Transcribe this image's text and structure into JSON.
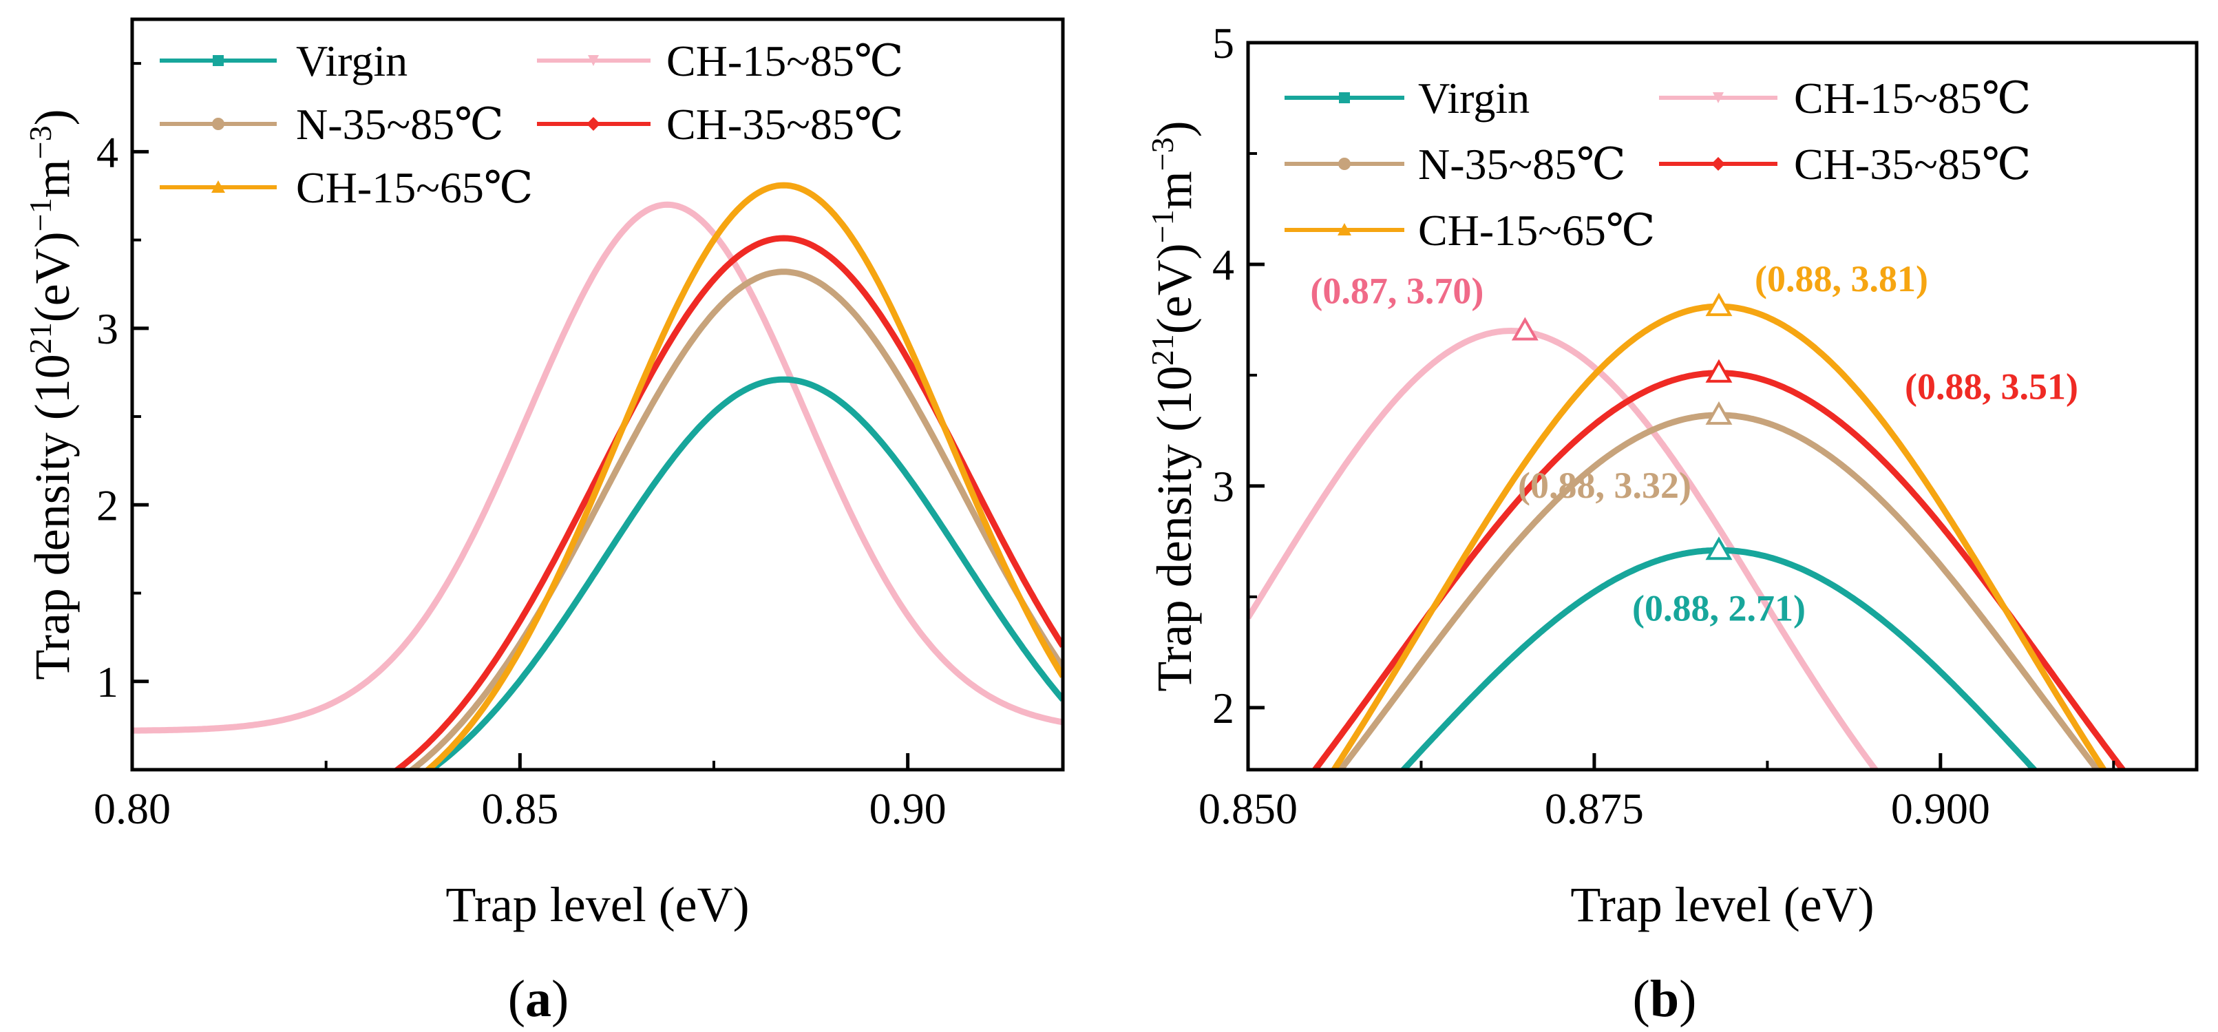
{
  "chart_data": [
    {
      "type": "line",
      "panel": "(a)",
      "panel_letter": "a",
      "xlabel": "Trap level (eV)",
      "ylabel": "Trap density (10",
      "ylabel_sup1": "21",
      "ylabel_mid": "(eV)",
      "ylabel_sup2": "−1",
      "ylabel_tail": "m",
      "ylabel_sup3": "−3",
      "ylabel_close": ")",
      "xlim": [
        0.8,
        0.92
      ],
      "ylim": [
        0.5,
        4.75
      ],
      "xticks": [
        0.8,
        0.85,
        0.9
      ],
      "xtick_labels": [
        "0.80",
        "0.85",
        "0.90"
      ],
      "yticks": [
        1,
        2,
        3,
        4
      ],
      "ytick_labels": [
        "1",
        "2",
        "3",
        "4"
      ],
      "series": [
        {
          "name": "Virgin",
          "color": "#17a69b",
          "peak_x": 0.884,
          "peak_y": 2.71,
          "sigma": 0.0232,
          "base": 0.12
        },
        {
          "name": "CH-15~85℃",
          "color": "#f7b6c5",
          "peak_x": 0.869,
          "peak_y": 3.7,
          "sigma": 0.0178,
          "base": 0.72
        },
        {
          "name": "N-35~85℃",
          "color": "#c7a37b",
          "peak_x": 0.884,
          "peak_y": 3.32,
          "sigma": 0.0232,
          "base": 0.12
        },
        {
          "name": "CH-35~85℃",
          "color": "#ef2a24",
          "peak_x": 0.884,
          "peak_y": 3.51,
          "sigma": 0.0238,
          "base": 0.12
        },
        {
          "name": "CH-15~65℃",
          "color": "#f6a511",
          "peak_x": 0.884,
          "peak_y": 3.81,
          "sigma": 0.0215,
          "base": 0.12
        }
      ]
    },
    {
      "type": "line",
      "panel": "(b)",
      "panel_letter": "b",
      "xlabel": "Trap level (eV)",
      "ylabel": "Trap density (10",
      "ylabel_sup1": "21",
      "ylabel_mid": "(eV)",
      "ylabel_sup2": "−1",
      "ylabel_tail": "m",
      "ylabel_sup3": "−3",
      "ylabel_close": ")",
      "xlim": [
        0.85,
        0.9185
      ],
      "ylim": [
        1.72,
        5.0
      ],
      "xticks": [
        0.85,
        0.875,
        0.9
      ],
      "xtick_labels": [
        "0.850",
        "0.875",
        "0.900"
      ],
      "yticks": [
        2,
        3,
        4,
        5
      ],
      "ytick_labels": [
        "2",
        "3",
        "4",
        "5"
      ],
      "series": [
        {
          "name": "Virgin",
          "color": "#17a69b",
          "peak_x": 0.884,
          "peak_y": 2.71,
          "sigma": 0.0232,
          "base": 0.12
        },
        {
          "name": "CH-15~85℃",
          "color": "#f7b6c5",
          "peak_x": 0.869,
          "peak_y": 3.7,
          "sigma": 0.0178,
          "base": 0.72
        },
        {
          "name": "N-35~85℃",
          "color": "#c7a37b",
          "peak_x": 0.884,
          "peak_y": 3.32,
          "sigma": 0.0232,
          "base": 0.12
        },
        {
          "name": "CH-35~85℃",
          "color": "#ef2a24",
          "peak_x": 0.884,
          "peak_y": 3.51,
          "sigma": 0.0238,
          "base": 0.12
        },
        {
          "name": "CH-15~65℃",
          "color": "#f6a511",
          "peak_x": 0.884,
          "peak_y": 3.81,
          "sigma": 0.0215,
          "base": 0.12
        }
      ],
      "annotations": [
        {
          "text": "(0.87, 3.70)",
          "x": 0.87,
          "y": 3.7,
          "color": "#f06a88",
          "series": "CH-15~85℃"
        },
        {
          "text": "(0.88, 3.81)",
          "x": 0.884,
          "y": 3.81,
          "color": "#f6a511",
          "series": "CH-15~65℃"
        },
        {
          "text": "(0.88, 3.51)",
          "x": 0.884,
          "y": 3.51,
          "color": "#ef2a24",
          "series": "CH-35~85℃"
        },
        {
          "text": "(0.88, 3.32)",
          "x": 0.884,
          "y": 3.32,
          "color": "#c7a37b",
          "series": "N-35~85℃"
        },
        {
          "text": "(0.88, 2.71)",
          "x": 0.884,
          "y": 2.71,
          "color": "#17a69b",
          "series": "Virgin"
        }
      ]
    }
  ]
}
